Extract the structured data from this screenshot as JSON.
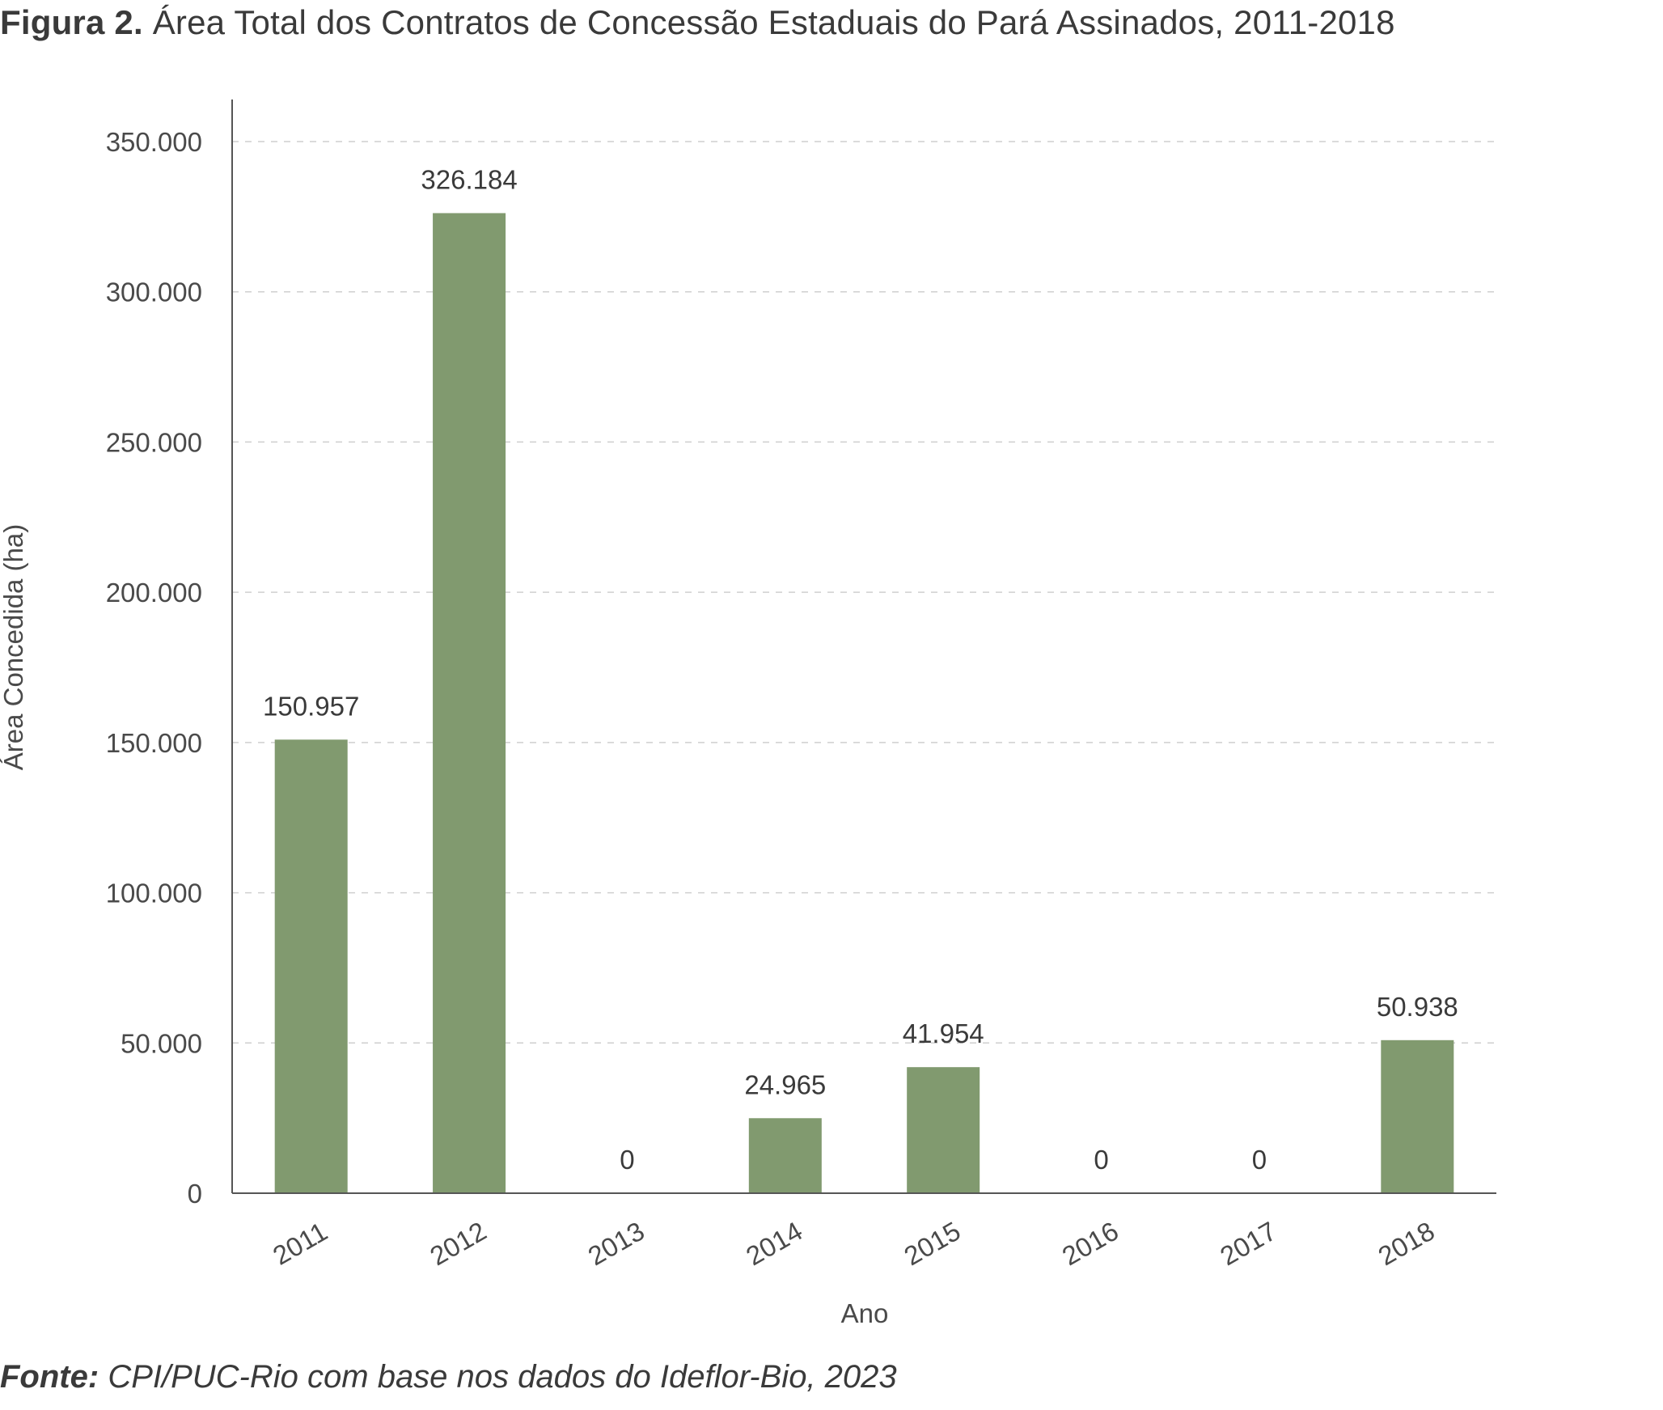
{
  "figure": {
    "label": "Figura 2.",
    "title": "Área Total dos Contratos de Concessão Estaduais do Pará Assinados, 2011-2018"
  },
  "source": {
    "label": "Fonte:",
    "text": "CPI/PUC-Rio com base nos dados do Ideflor-Bio, 2023"
  },
  "chart_data": {
    "type": "bar",
    "title": "Área Total dos Contratos de Concessão Estaduais do Pará Assinados, 2011-2018",
    "xlabel": "Ano",
    "ylabel": "Área Concedida (ha)",
    "categories": [
      "2011",
      "2012",
      "2013",
      "2014",
      "2015",
      "2016",
      "2017",
      "2018"
    ],
    "values": [
      150957,
      326184,
      0,
      24965,
      41954,
      0,
      0,
      50938
    ],
    "value_labels": [
      "150.957",
      "326.184",
      "0",
      "24.965",
      "41.954",
      "0",
      "0",
      "50.938"
    ],
    "ylim": [
      0,
      350000
    ],
    "yticks": [
      0,
      50000,
      100000,
      150000,
      200000,
      250000,
      300000,
      350000
    ],
    "ytick_labels": [
      "0",
      "50.000",
      "100.000",
      "150.000",
      "200.000",
      "250.000",
      "300.000",
      "350.000"
    ],
    "grid": true,
    "bar_color": "#819a6f"
  }
}
